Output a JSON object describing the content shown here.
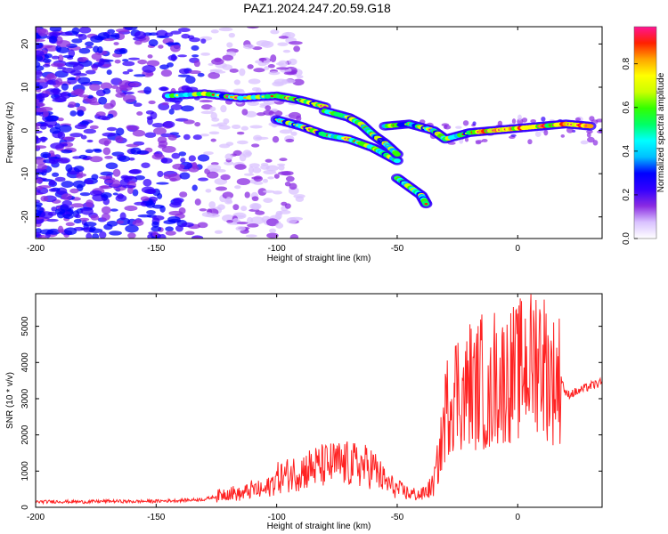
{
  "title": "PAZ1.2024.247.20.59.G18",
  "chart_data": [
    {
      "type": "heatmap",
      "xlabel": "Height of straight line (km)",
      "ylabel": "Frequency (Hz)",
      "xlim": [
        -200,
        35
      ],
      "ylim": [
        -25,
        24
      ],
      "xticks": [
        -200,
        -150,
        -100,
        -50,
        0
      ],
      "yticks": [
        -20,
        -10,
        0,
        10,
        20
      ],
      "colorbar": {
        "label": "Normalized spectral amplitude",
        "range": [
          0,
          0.97
        ],
        "ticks": [
          0.0,
          0.2,
          0.4,
          0.6,
          0.8
        ],
        "tick_labels": [
          "0.0",
          "0.2",
          "0.4",
          "0.6",
          "0.8"
        ],
        "colormap": [
          "#ffffff",
          "#d9c2ff",
          "#8a2be2",
          "#3300ff",
          "#0000ff",
          "#00bfff",
          "#00ffff",
          "#00ff66",
          "#33ff00",
          "#ccff00",
          "#ffff00",
          "#ffa500",
          "#ff2000",
          "#ff1493"
        ]
      },
      "ridges": [
        {
          "name": "",
          "x": [
            -145,
            -130,
            -115,
            -100,
            -90,
            -80
          ],
          "y": [
            8,
            8.5,
            7.5,
            8,
            7,
            5.5
          ]
        },
        {
          "name": "",
          "x": [
            -100,
            -90,
            -80,
            -70,
            -60,
            -55,
            -50
          ],
          "y": [
            2.5,
            1,
            -1,
            -2,
            -4,
            -5.5,
            -7
          ]
        },
        {
          "name": "",
          "x": [
            -80,
            -70,
            -65,
            -60,
            -55,
            -50
          ],
          "y": [
            4.5,
            3,
            1.5,
            -1,
            -3,
            -5.5
          ]
        },
        {
          "name": "",
          "x": [
            -50,
            -45,
            -40,
            -38
          ],
          "y": [
            -11,
            -13,
            -15,
            -17
          ]
        },
        {
          "name": "",
          "x": [
            -55,
            -45,
            -35,
            -30,
            -20,
            -10,
            0,
            10,
            20,
            30
          ],
          "y": [
            1,
            1.5,
            0,
            -2,
            -0.5,
            0,
            0.5,
            1,
            1.5,
            1
          ]
        }
      ]
    },
    {
      "type": "line",
      "xlabel": "Height of straight line (km)",
      "ylabel": "SNR (10 * v/v)",
      "xlim": [
        -200,
        35
      ],
      "ylim": [
        0,
        5900
      ],
      "xticks": [
        -200,
        -150,
        -100,
        -50,
        0
      ],
      "yticks": [
        0,
        1000,
        2000,
        3000,
        4000,
        5000
      ],
      "color": "#ff2222",
      "series": [
        {
          "name": "",
          "x": [
            -200,
            -190,
            -180,
            -170,
            -160,
            -150,
            -140,
            -130,
            -125,
            -120,
            -115,
            -110,
            -105,
            -100,
            -95,
            -90,
            -85,
            -80,
            -75,
            -70,
            -65,
            -60,
            -55,
            -50,
            -45,
            -40,
            -35,
            -32,
            -30,
            -28,
            -25,
            -22,
            -20,
            -18,
            -15,
            -12,
            -10,
            -8,
            -5,
            -2,
            0,
            3,
            5,
            8,
            10,
            12,
            15,
            18,
            20,
            25,
            30,
            35
          ],
          "y": [
            150,
            160,
            150,
            170,
            160,
            170,
            190,
            220,
            300,
            420,
            350,
            500,
            450,
            800,
            900,
            1000,
            1100,
            1150,
            1200,
            1180,
            1150,
            1100,
            700,
            500,
            380,
            340,
            600,
            1600,
            2600,
            3100,
            3300,
            3000,
            3500,
            3200,
            3600,
            2600,
            3700,
            3400,
            3600,
            3700,
            3700,
            4000,
            3900,
            4300,
            4200,
            3800,
            3500,
            3600,
            3100,
            3200,
            3350,
            3450
          ]
        }
      ]
    }
  ]
}
